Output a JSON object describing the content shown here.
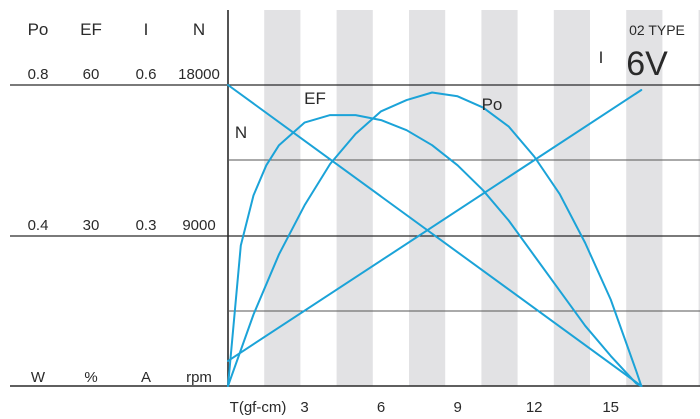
{
  "header": {
    "labels": [
      "Po",
      "EF",
      "I",
      "N"
    ],
    "top_values": [
      "0.8",
      "60",
      "0.6",
      "18000"
    ],
    "mid_values": [
      "0.4",
      "30",
      "0.3",
      "9000"
    ],
    "units": [
      "W",
      "%",
      "A",
      "rpm"
    ]
  },
  "badge": {
    "type_label": "02 TYPE",
    "voltage": "6V"
  },
  "colors": {
    "curve": "#1ba3d8",
    "stripe": "#e2e2e4",
    "axis": "#2a2a2a",
    "grid": "#555555"
  },
  "chart_data": {
    "type": "line",
    "title": "",
    "xlabel": "T(gf-cm)",
    "xticks": [
      3,
      6,
      9,
      12,
      15
    ],
    "xlim": [
      0,
      18.5
    ],
    "grid": true,
    "series": [
      {
        "name": "N",
        "axis": "rpm",
        "ylim": [
          0,
          18000
        ],
        "x": [
          0,
          16.2
        ],
        "y": [
          18000,
          0
        ]
      },
      {
        "name": "I",
        "axis": "A",
        "ylim": [
          0,
          0.6
        ],
        "x": [
          0,
          16.2
        ],
        "y": [
          0.05,
          0.59
        ]
      },
      {
        "name": "EF",
        "axis": "%",
        "ylim": [
          0,
          60
        ],
        "x": [
          0,
          0.5,
          1,
          1.5,
          2,
          3,
          4,
          5,
          6,
          7,
          8,
          9,
          10,
          11,
          12,
          13,
          14,
          15,
          16,
          16.2
        ],
        "y": [
          0,
          28,
          38,
          44,
          48,
          52.5,
          54,
          54,
          53,
          51,
          48,
          44,
          39,
          33,
          26,
          19,
          12,
          6,
          0.5,
          0
        ]
      },
      {
        "name": "Po",
        "axis": "W",
        "ylim": [
          0,
          0.8
        ],
        "x": [
          0,
          1,
          2,
          3,
          4,
          5,
          6,
          7,
          8,
          9,
          10,
          11,
          12,
          13,
          14,
          15,
          16,
          16.2
        ],
        "y": [
          0,
          0.19,
          0.35,
          0.48,
          0.59,
          0.67,
          0.73,
          0.76,
          0.78,
          0.77,
          0.74,
          0.69,
          0.61,
          0.51,
          0.38,
          0.23,
          0.04,
          0
        ]
      }
    ],
    "curve_labels": [
      "N",
      "EF",
      "Po",
      "I"
    ]
  }
}
